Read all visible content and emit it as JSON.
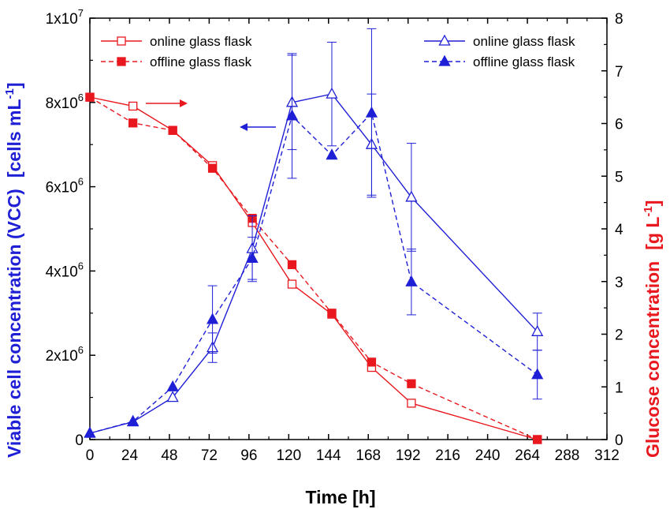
{
  "chart_data": {
    "type": "line",
    "title": "",
    "xlabel": "Time   [h]",
    "xlim": [
      0,
      312
    ],
    "xticks": [
      "0",
      "24",
      "48",
      "72",
      "96",
      "120",
      "144",
      "168",
      "192",
      "216",
      "240",
      "264",
      "288",
      "312"
    ],
    "y_left": {
      "label": "Viable cell concentration (VCC)",
      "unit": "[cells mL",
      "unit_sup": "-1",
      "unit_end": "]",
      "lim": [
        0,
        10000000
      ],
      "ticks": [
        {
          "value": 0,
          "base": "0",
          "exp": ""
        },
        {
          "value": 2000000,
          "base": "2x10",
          "exp": "6"
        },
        {
          "value": 4000000,
          "base": "4x10",
          "exp": "6"
        },
        {
          "value": 6000000,
          "base": "6x10",
          "exp": "6"
        },
        {
          "value": 8000000,
          "base": "8x10",
          "exp": "6"
        },
        {
          "value": 10000000,
          "base": "1x10",
          "exp": "7"
        }
      ],
      "color": "#1f1fd6"
    },
    "y_right": {
      "label": "Glucose concentration",
      "unit": "[g L",
      "unit_sup": "-1",
      "unit_end": "]",
      "lim": [
        0,
        8
      ],
      "ticks": [
        "0",
        "1",
        "2",
        "3",
        "4",
        "5",
        "6",
        "7",
        "8"
      ],
      "color": "#e8181e"
    },
    "series": [
      {
        "name": "online glass flask",
        "axis": "right",
        "color": "#e8181e",
        "dash": false,
        "marker": "square-open",
        "x": [
          0,
          26,
          50,
          74,
          98,
          122,
          146,
          170,
          194,
          270
        ],
        "y": [
          6.5,
          6.33,
          5.87,
          5.2,
          4.12,
          2.95,
          2.38,
          1.37,
          0.69,
          0.0
        ]
      },
      {
        "name": "offline glass flask",
        "axis": "right",
        "color": "#e8181e",
        "dash": true,
        "marker": "square-filled",
        "x": [
          0,
          26,
          50,
          74,
          98,
          122,
          146,
          170,
          194,
          270
        ],
        "y": [
          6.5,
          6.01,
          5.87,
          5.15,
          4.2,
          3.32,
          2.4,
          1.47,
          1.06,
          0.0
        ]
      },
      {
        "name": "online glass flask",
        "axis": "left",
        "color": "#1f1fd6",
        "dash": false,
        "marker": "triangle-open",
        "x": [
          0,
          26,
          50,
          74,
          98,
          122,
          146,
          170,
          194,
          270
        ],
        "y": [
          150000,
          420000,
          1000000,
          2180000,
          4530000,
          8000000,
          8200000,
          7000000,
          5750000,
          2560000
        ],
        "err": [
          0,
          0,
          0,
          350000,
          780000,
          1120000,
          1230000,
          1200000,
          1280000,
          440000
        ]
      },
      {
        "name": "offline glass flask",
        "axis": "left",
        "color": "#1f1fd6",
        "dash": true,
        "marker": "triangle-filled",
        "x": [
          0,
          26,
          50,
          74,
          98,
          122,
          146,
          170,
          194,
          270
        ],
        "y": [
          150000,
          430000,
          1250000,
          2850000,
          4300000,
          7680000,
          6750000,
          7750000,
          3740000,
          1540000
        ],
        "err": [
          0,
          0,
          0,
          800000,
          500000,
          1480000,
          0,
          2000000,
          780000,
          580000
        ]
      }
    ],
    "legend": {
      "left": {
        "position": "top-left",
        "entries": [
          "online glass flask",
          "offline glass flask"
        ]
      },
      "right": {
        "position": "top-right",
        "entries": [
          "online glass flask",
          "offline glass flask"
        ]
      }
    },
    "annotations": [
      {
        "type": "arrow",
        "direction": "right",
        "color": "#e8181e",
        "points_to": "right axis"
      },
      {
        "type": "arrow",
        "direction": "left",
        "color": "#1f1fd6",
        "points_to": "left axis"
      }
    ]
  }
}
